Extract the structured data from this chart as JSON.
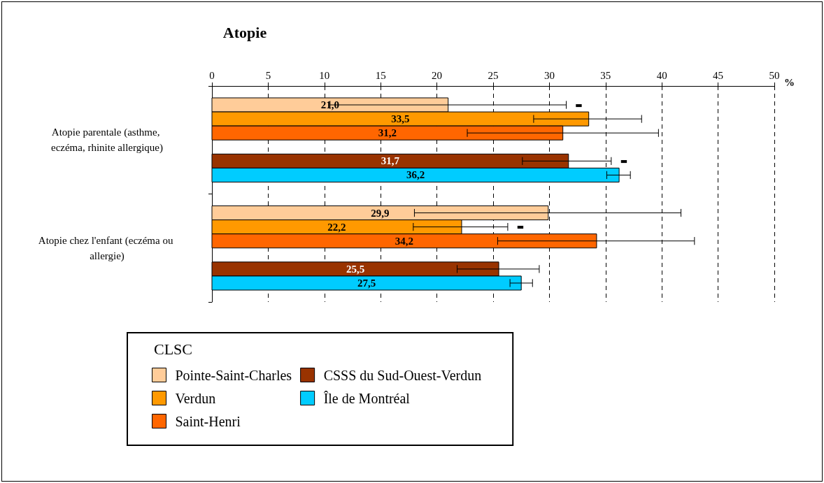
{
  "chart_data": {
    "type": "bar",
    "orientation": "horizontal",
    "title": "Atopie",
    "xlabel": "%",
    "legend_title": "CLSC",
    "categories": [
      "Atopie parentale (asthme, eczéma, rhinite allergique)",
      "Atopie chez l'enfant (eczéma ou allergie)"
    ],
    "series": [
      {
        "name": "Pointe-Saint-Charles",
        "color": "#ffcc99",
        "values": [
          21.0,
          29.9
        ],
        "value_labels": [
          "21,0",
          "29,9"
        ],
        "errors": [
          [
            10.5,
            31.5
          ],
          [
            18.0,
            41.7
          ]
        ]
      },
      {
        "name": "Verdun",
        "color": "#ff9900",
        "values": [
          33.5,
          22.2
        ],
        "value_labels": [
          "33,5",
          "22,2"
        ],
        "errors": [
          [
            28.6,
            38.2
          ],
          [
            17.9,
            26.3
          ]
        ]
      },
      {
        "name": "Saint-Henri",
        "color": "#ff6600",
        "values": [
          31.2,
          34.2
        ],
        "value_labels": [
          "31,2",
          "34,2"
        ],
        "errors": [
          [
            22.7,
            39.7
          ],
          [
            25.4,
            42.9
          ]
        ]
      },
      {
        "name": "CSSS du Sud-Ouest-Verdun",
        "color": "#993300",
        "values": [
          31.7,
          25.5
        ],
        "value_labels": [
          "31,7",
          "25,5"
        ],
        "errors": [
          [
            27.6,
            35.5
          ],
          [
            21.8,
            29.1
          ]
        ]
      },
      {
        "name": "Île de Montréal",
        "color": "#00ccff",
        "values": [
          36.2,
          27.5
        ],
        "value_labels": [
          "36,2",
          "27,5"
        ],
        "errors": [
          [
            35.1,
            37.2
          ],
          [
            26.5,
            28.5
          ]
        ]
      }
    ],
    "annotations": [
      "▬",
      "▬",
      "▬"
    ],
    "xlim": [
      0,
      50
    ],
    "xticks": [
      0,
      5,
      10,
      15,
      20,
      25,
      30,
      35,
      40,
      45,
      50
    ],
    "grid": "x",
    "legend": "bottom"
  }
}
